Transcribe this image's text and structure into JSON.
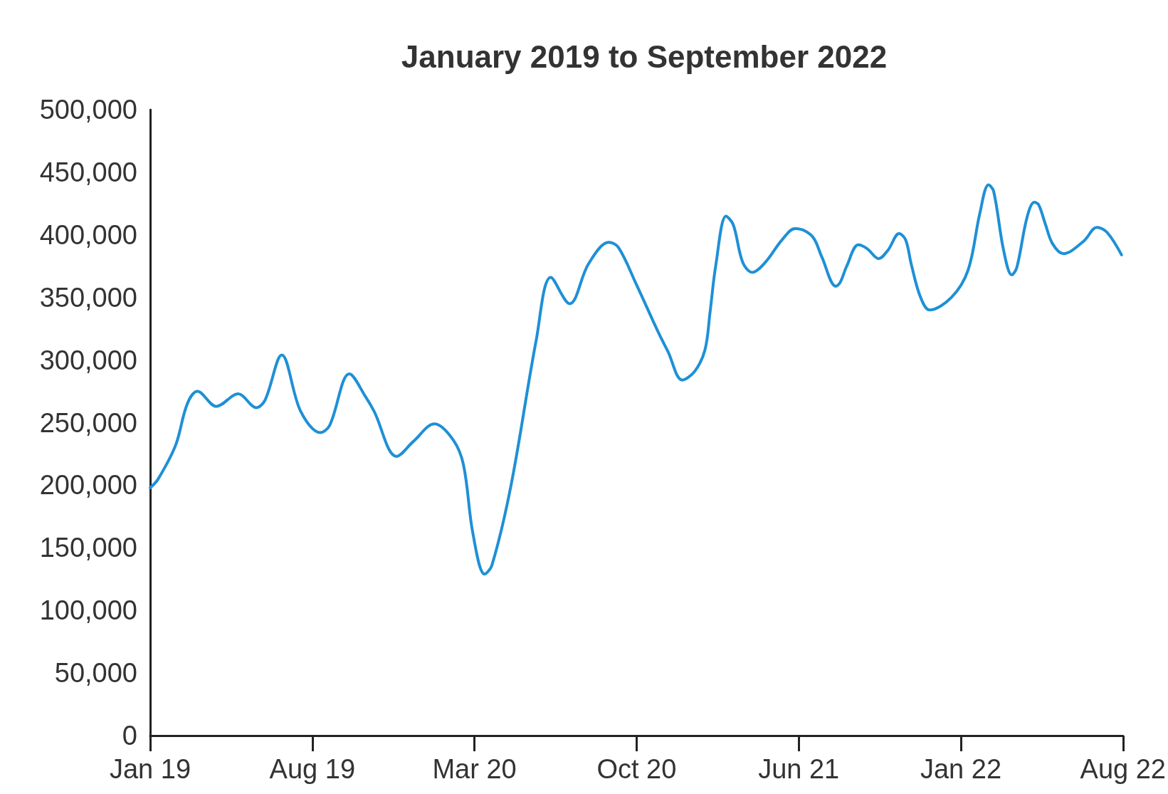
{
  "chart_data": {
    "type": "line",
    "title": "January 2019 to September 2022",
    "x": [
      "2019-01-01",
      "2019-01-12",
      "2019-02-05",
      "2019-02-21",
      "2019-03-07",
      "2019-04-02",
      "2019-05-02",
      "2019-05-27",
      "2019-06-08",
      "2019-07-01",
      "2019-07-27",
      "2019-08-23",
      "2019-09-05",
      "2019-10-02",
      "2019-10-25",
      "2019-11-05",
      "2019-12-06",
      "2019-12-29",
      "2020-01-27",
      "2020-02-22",
      "2020-03-07",
      "2020-03-20",
      "2020-04-05",
      "2020-04-15",
      "2020-05-11",
      "2020-06-15",
      "2020-07-05",
      "2020-07-31",
      "2020-08-26",
      "2020-09-23",
      "2020-10-06",
      "2020-10-31",
      "2020-11-30",
      "2020-12-13",
      "2021-01-02",
      "2021-01-19",
      "2021-02-02",
      "2021-02-09",
      "2021-02-17",
      "2021-03-03",
      "2021-03-13",
      "2021-03-26",
      "2021-04-08",
      "2021-04-26",
      "2021-05-19",
      "2021-06-06",
      "2021-06-20",
      "2021-07-02",
      "2021-07-13",
      "2021-08-01",
      "2021-08-07",
      "2021-08-16",
      "2021-09-01",
      "2021-09-13",
      "2021-09-29",
      "2021-10-12",
      "2021-10-27",
      "2021-11-05",
      "2021-11-13",
      "2021-11-25",
      "2021-12-08",
      "2022-01-07",
      "2022-01-30",
      "2022-02-15",
      "2022-02-27",
      "2022-03-06",
      "2022-03-20",
      "2022-03-31",
      "2022-04-07",
      "2022-04-21",
      "2022-05-01",
      "2022-05-07",
      "2022-05-16",
      "2022-05-26",
      "2022-06-10",
      "2022-07-08",
      "2022-07-26",
      "2022-08-09",
      "2022-08-29"
    ],
    "series": [
      {
        "color": "#1e90d6",
        "values": [
          198000,
          205000,
          232000,
          265000,
          275000,
          263000,
          273000,
          262000,
          268000,
          304000,
          259000,
          242000,
          248000,
          289000,
          270000,
          259000,
          223000,
          235000,
          249000,
          236000,
          216000,
          161000,
          129000,
          136000,
          199000,
          316000,
          366000,
          345000,
          377000,
          394000,
          390000,
          360000,
          322000,
          307000,
          284000,
          291000,
          308000,
          338000,
          376000,
          415000,
          408000,
          378000,
          370000,
          378000,
          396000,
          405000,
          403000,
          397000,
          382000,
          359000,
          362000,
          375000,
          392000,
          389000,
          381000,
          388000,
          401000,
          396000,
          376000,
          351000,
          340000,
          350000,
          372000,
          417000,
          440000,
          435000,
          387000,
          368000,
          374000,
          414000,
          426000,
          424000,
          409000,
          393000,
          385000,
          395000,
          406000,
          402000,
          384000
        ]
      }
    ],
    "xlim": [
      "2019-01-01",
      "2022-08-31"
    ],
    "xticks": [
      {
        "value": "2019-01-01",
        "label": "Jan 19"
      },
      {
        "value": "2019-08-12",
        "label": "Aug 19"
      },
      {
        "value": "2020-03-22",
        "label": "Mar 20"
      },
      {
        "value": "2020-10-31",
        "label": "Oct 20"
      },
      {
        "value": "2021-06-11",
        "label": "Jun 21"
      },
      {
        "value": "2022-01-20",
        "label": "Jan 22"
      },
      {
        "value": "2022-08-31",
        "label": "Aug 22"
      }
    ],
    "ylim": [
      0,
      500000
    ],
    "yticks": [
      0,
      {
        "value": 50000,
        "label": "50,000"
      },
      {
        "value": 100000,
        "label": "100,000"
      },
      {
        "value": 150000,
        "label": "150,000"
      },
      {
        "value": 200000,
        "label": "200,000"
      },
      {
        "value": 250000,
        "label": "250,000"
      },
      {
        "value": 300000,
        "label": "300,000"
      },
      {
        "value": 350000,
        "label": "350,000"
      },
      {
        "value": 400000,
        "label": "400,000"
      },
      {
        "value": 450000,
        "label": "450,000"
      },
      {
        "value": 500000,
        "label": "500,000"
      }
    ],
    "grid": false,
    "marker": "none",
    "line_style": "solid"
  }
}
